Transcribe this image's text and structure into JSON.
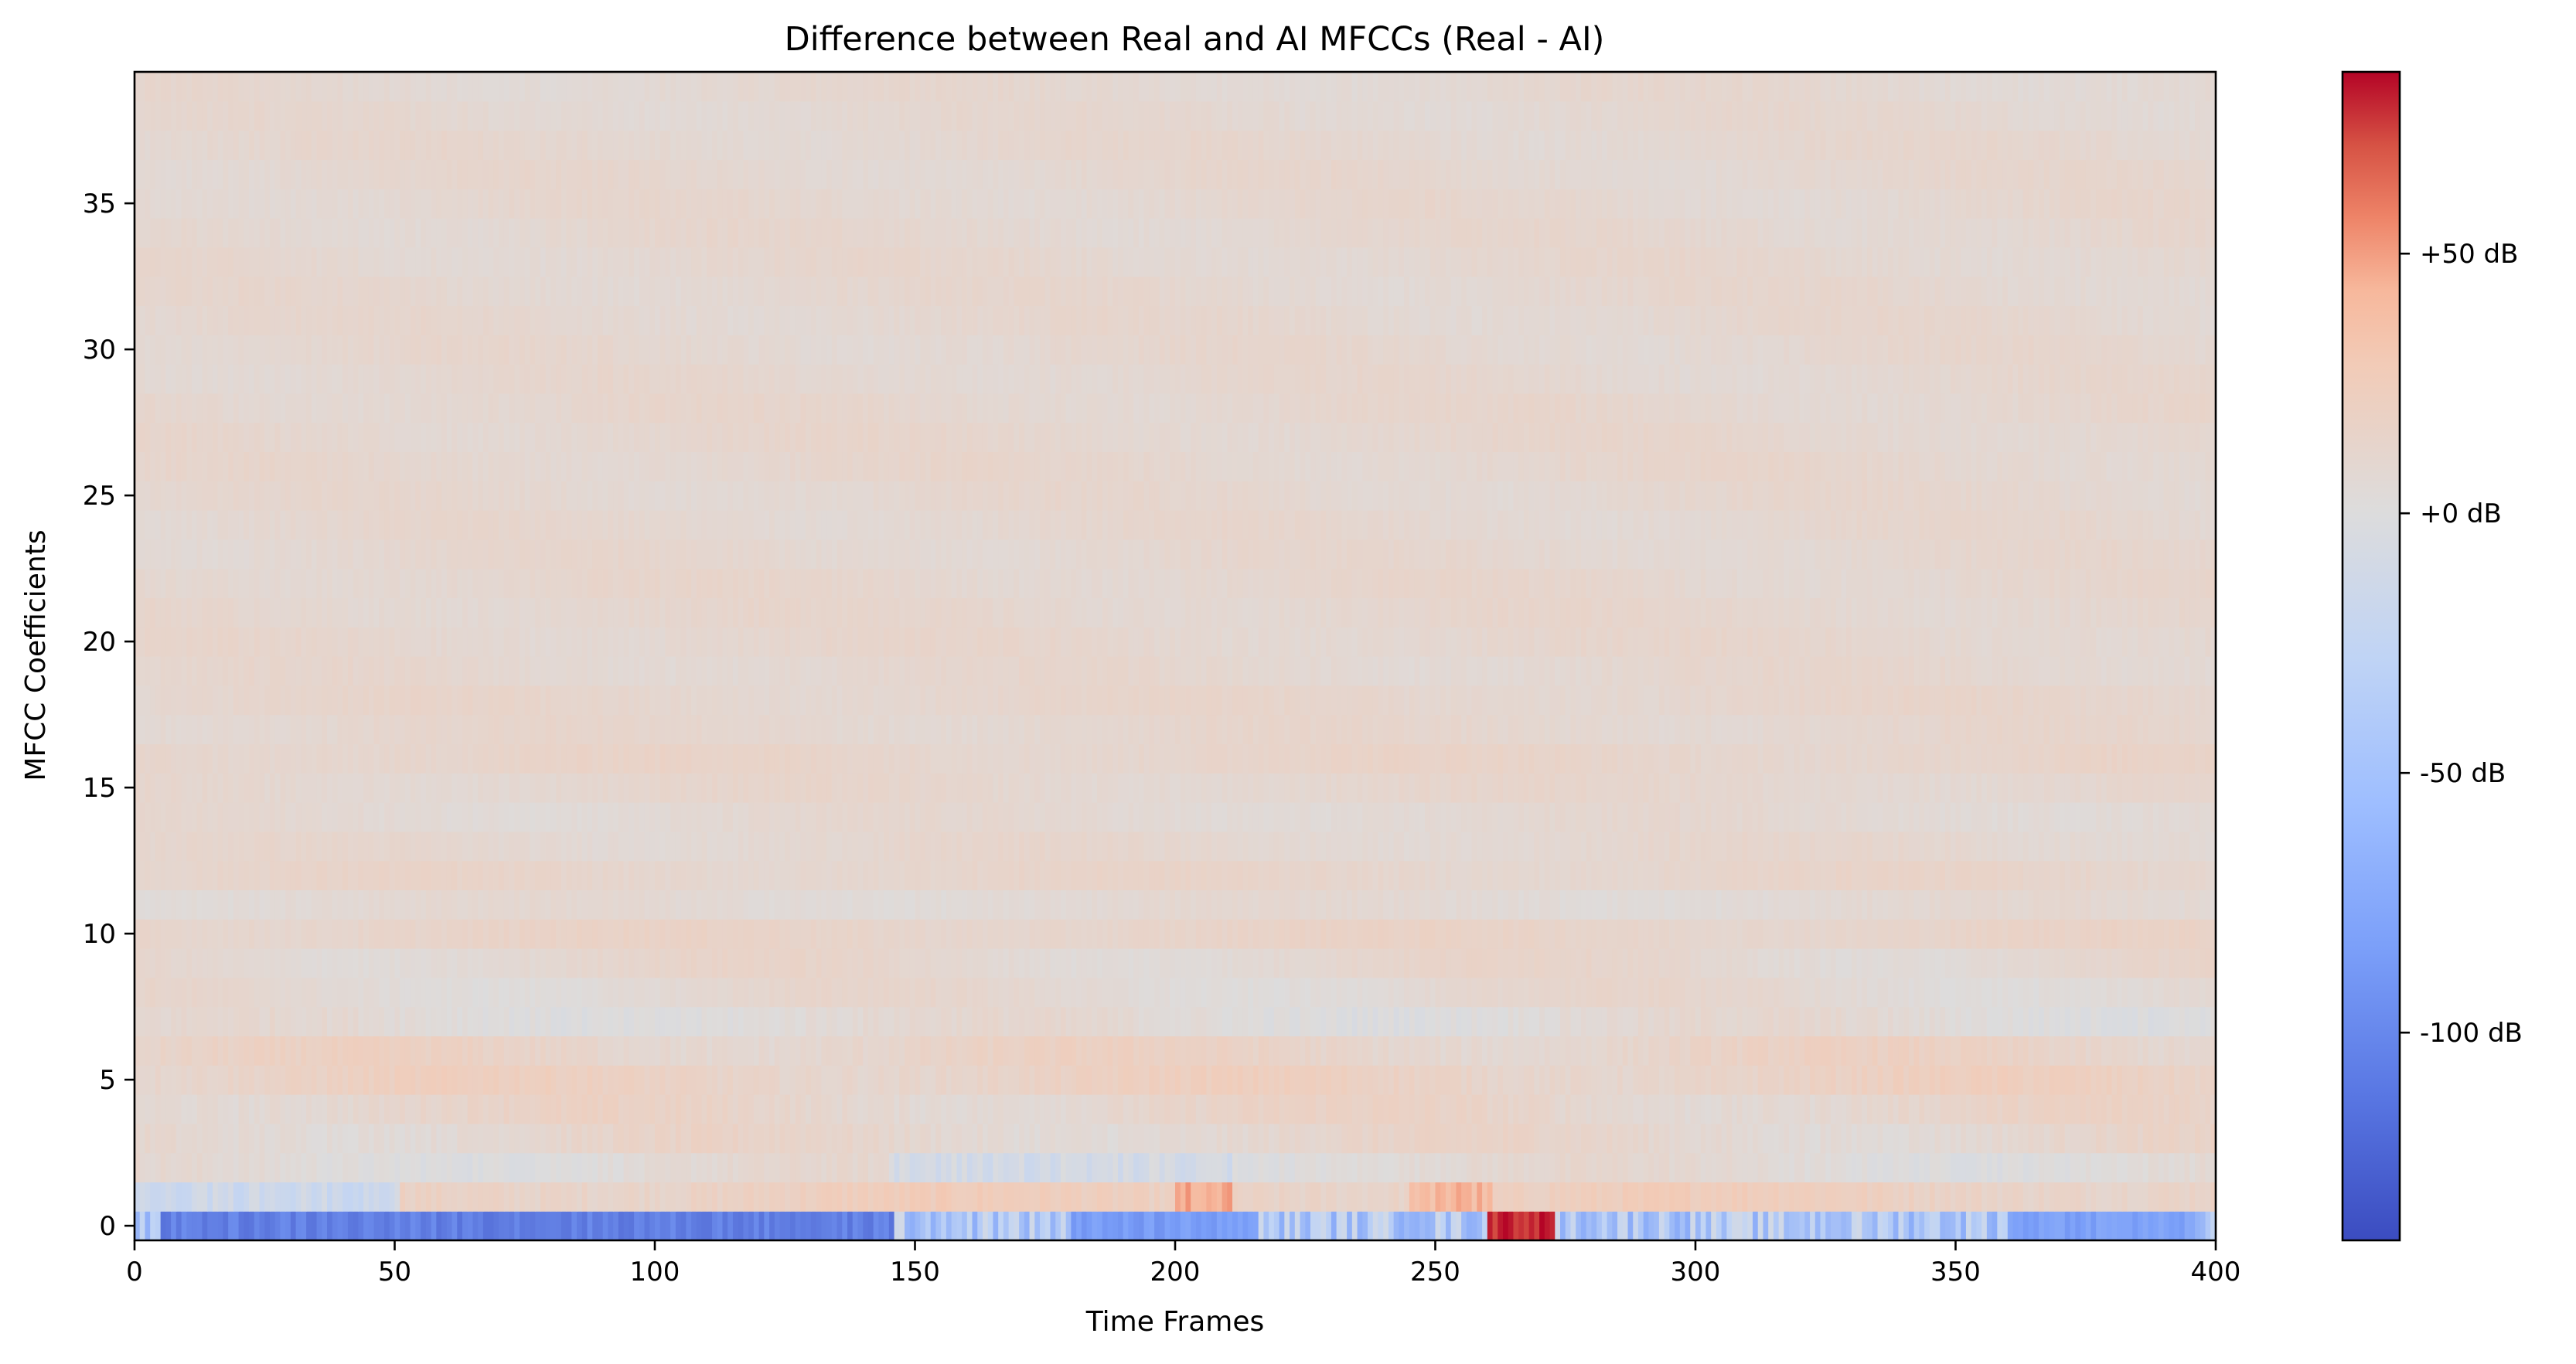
{
  "chart_data": {
    "type": "heatmap",
    "title": "Difference between Real and AI MFCCs (Real - AI)",
    "xlabel": "Time Frames",
    "ylabel": "MFCC Coefficients",
    "x_range": [
      0,
      400
    ],
    "y_range": [
      -0.5,
      39.5
    ],
    "n_frames": 400,
    "n_coefficients": 40,
    "x_ticks": [
      "0",
      "50",
      "100",
      "150",
      "200",
      "250",
      "300",
      "350",
      "400"
    ],
    "y_ticks": [
      "0",
      "5",
      "10",
      "15",
      "20",
      "25",
      "30",
      "35"
    ],
    "colormap": "coolwarm",
    "color_range": [
      -140,
      85
    ],
    "colorbar_ticks": [
      "+50 dB",
      "+0 dB",
      "-50 dB",
      "-100 dB"
    ],
    "row_baseline_db": [
      -55,
      20,
      4,
      10,
      12,
      17,
      14,
      4,
      7,
      9,
      14,
      6,
      12,
      9,
      7,
      10,
      13,
      10,
      11,
      9,
      10,
      10,
      10,
      9,
      9,
      9,
      10,
      10,
      10,
      9,
      9,
      9,
      9,
      9,
      9,
      9,
      9,
      9,
      8,
      8
    ],
    "notable_regions": [
      {
        "coefficient": 0,
        "frames": [
          5,
          145
        ],
        "approx_db": -105,
        "label": "strong negative"
      },
      {
        "coefficient": 0,
        "frames": [
          180,
          215
        ],
        "approx_db": -85,
        "label": "negative"
      },
      {
        "coefficient": 0,
        "frames": [
          260,
          272
        ],
        "approx_db": 80,
        "label": "strong positive"
      },
      {
        "coefficient": 0,
        "frames": [
          360,
          395
        ],
        "approx_db": -80,
        "label": "negative"
      },
      {
        "coefficient": 1,
        "frames": [
          200,
          210
        ],
        "approx_db": 45,
        "label": "positive"
      },
      {
        "coefficient": 1,
        "frames": [
          245,
          260
        ],
        "approx_db": 40,
        "label": "positive"
      },
      {
        "coefficient": 1,
        "frames": [
          0,
          50
        ],
        "approx_db": -15,
        "label": "near zero"
      },
      {
        "coefficient": 2,
        "frames": [
          145,
          210
        ],
        "approx_db": -10,
        "label": "near zero"
      }
    ]
  }
}
